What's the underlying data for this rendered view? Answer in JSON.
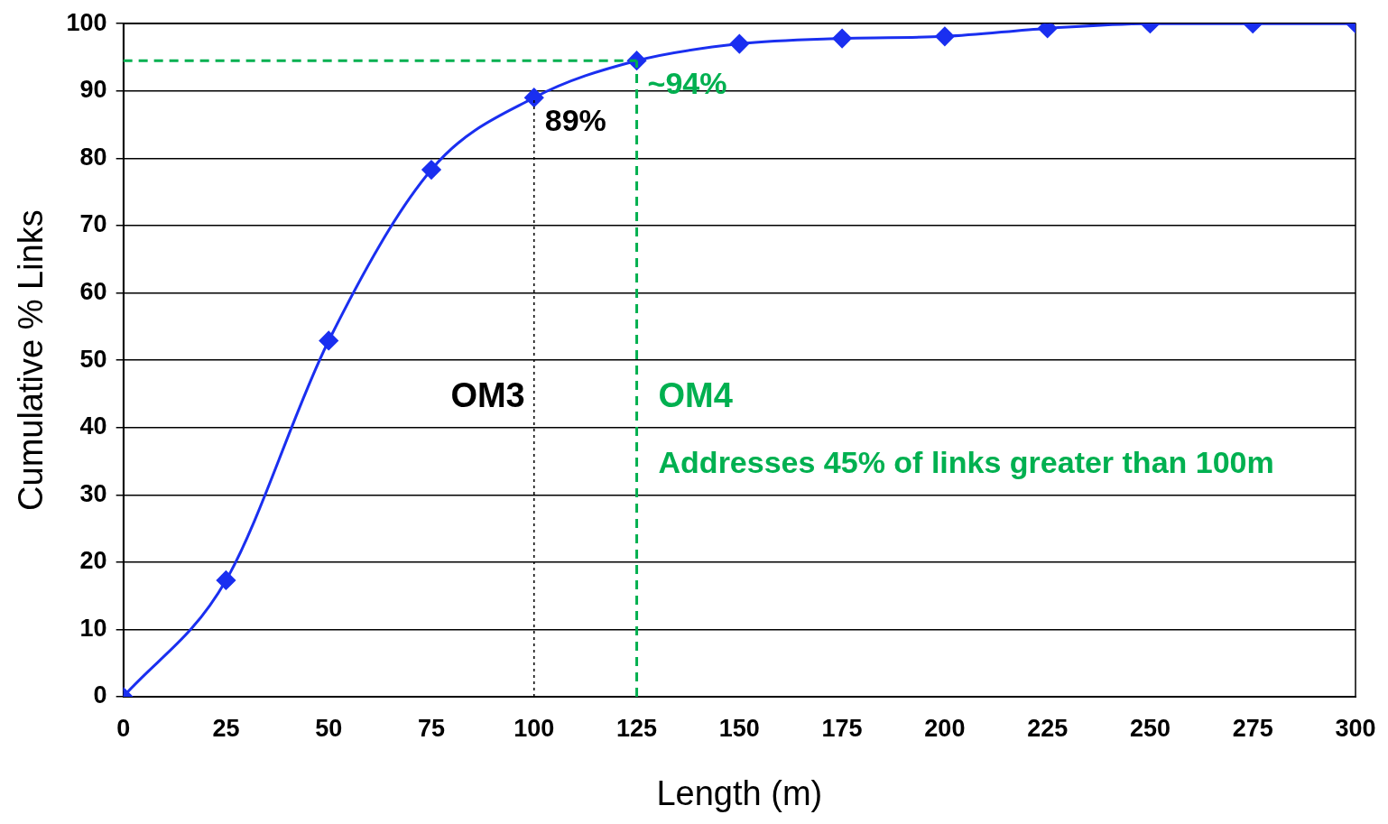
{
  "chart_data": {
    "type": "line",
    "xlabel": "Length (m)",
    "ylabel": "Cumulative % Links",
    "x": [
      0,
      25,
      50,
      75,
      100,
      125,
      150,
      175,
      200,
      225,
      250,
      275,
      300
    ],
    "series": [
      {
        "color": "#1a2ff0",
        "values": [
          0,
          17.3,
          52.9,
          78.3,
          89,
          94.5,
          97,
          97.8,
          98.1,
          99.3,
          100,
          100,
          100
        ]
      }
    ],
    "xlim": [
      0,
      300
    ],
    "xticks": [
      0,
      25,
      50,
      75,
      100,
      125,
      150,
      175,
      200,
      225,
      250,
      275,
      300
    ],
    "ylim": [
      0,
      100
    ],
    "yticks": [
      0,
      10,
      20,
      30,
      40,
      50,
      60,
      70,
      80,
      90,
      100
    ],
    "grid": "y",
    "legend": false,
    "marker": "diamond",
    "line_style": "solid",
    "ref_lines": [
      {
        "axis": "x",
        "value": 100,
        "label": "OM3",
        "color": "#000000",
        "line_style": "dotted"
      },
      {
        "axis": "x",
        "value": 125,
        "label": "OM4",
        "color": "#00b050",
        "line_style": "dashed"
      },
      {
        "axis": "y",
        "value": 94.5,
        "color": "#00b050",
        "line_style": "dashed"
      }
    ],
    "annotations": [
      {
        "text": "89%",
        "x": 100,
        "y": 89
      },
      {
        "text": "~94%",
        "x": 125,
        "y": 94.5
      },
      "Addresses 45% of links greater than 100m"
    ]
  }
}
